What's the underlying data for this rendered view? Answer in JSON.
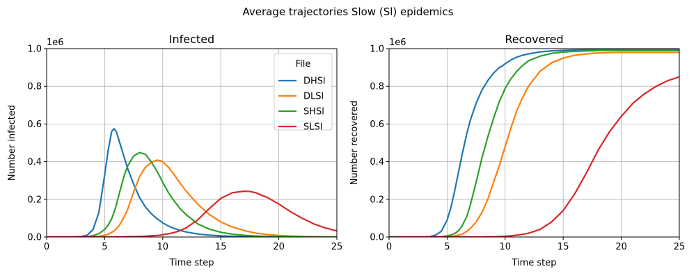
{
  "figure": {
    "suptitle": "Average trajectories Slow (Sl) epidemics"
  },
  "colors": {
    "DHSl": "#1f77b4",
    "DLSl": "#ff7f0e",
    "SHSl": "#2ca02c",
    "SLSl": "#d62728",
    "grid": "#b0b0b0"
  },
  "chart_data": [
    {
      "type": "line",
      "title": "Infected",
      "xlabel": "Time step",
      "ylabel": "Number infected",
      "offset_text": "1e6",
      "xlim": [
        0,
        25
      ],
      "ylim": [
        0,
        1.0
      ],
      "xticks": [
        "0",
        "5",
        "10",
        "15",
        "20",
        "25"
      ],
      "yticks": [
        "0.0",
        "0.2",
        "0.4",
        "0.6",
        "0.8",
        "1.0"
      ],
      "grid": true,
      "legend": {
        "title": "File",
        "placement": "top-right",
        "entries": [
          "DHSl",
          "DLSl",
          "SHSl",
          "SLSl"
        ]
      },
      "x": [
        0,
        1,
        2,
        3,
        3.5,
        4,
        4.5,
        5,
        5.3,
        5.6,
        5.8,
        6,
        6.3,
        6.7,
        7,
        7.5,
        8,
        8.5,
        9,
        9.5,
        9.8,
        10,
        10.5,
        11,
        11.5,
        12,
        13,
        14,
        15,
        16,
        17,
        17.5,
        18,
        19,
        20,
        21,
        22,
        23,
        24,
        25
      ],
      "series": [
        {
          "name": "DHSl",
          "values": [
            0,
            0,
            0,
            0.003,
            0.01,
            0.04,
            0.13,
            0.33,
            0.46,
            0.56,
            0.575,
            0.56,
            0.5,
            0.42,
            0.36,
            0.28,
            0.21,
            0.16,
            0.125,
            0.097,
            0.085,
            0.075,
            0.058,
            0.045,
            0.035,
            0.027,
            0.016,
            0.01,
            0.006,
            0.004,
            0.002,
            0.002,
            0.001,
            0.001,
            0,
            0,
            0,
            0,
            0,
            0
          ]
        },
        {
          "name": "DLSl",
          "values": [
            0,
            0,
            0,
            0,
            0.001,
            0.002,
            0.004,
            0.009,
            0.015,
            0.024,
            0.032,
            0.043,
            0.065,
            0.11,
            0.15,
            0.24,
            0.32,
            0.37,
            0.395,
            0.408,
            0.405,
            0.4,
            0.37,
            0.33,
            0.285,
            0.245,
            0.175,
            0.12,
            0.08,
            0.053,
            0.035,
            0.027,
            0.021,
            0.013,
            0.008,
            0.005,
            0.003,
            0.002,
            0.001,
            0
          ]
        },
        {
          "name": "SHSl",
          "values": [
            0,
            0,
            0,
            0.001,
            0.002,
            0.007,
            0.018,
            0.04,
            0.063,
            0.097,
            0.13,
            0.17,
            0.24,
            0.33,
            0.38,
            0.43,
            0.448,
            0.44,
            0.4,
            0.35,
            0.315,
            0.29,
            0.235,
            0.19,
            0.15,
            0.12,
            0.07,
            0.042,
            0.025,
            0.015,
            0.009,
            0.007,
            0.005,
            0.003,
            0.002,
            0.001,
            0,
            0,
            0,
            0
          ]
        },
        {
          "name": "SLSl",
          "values": [
            0,
            0,
            0,
            0,
            0,
            0,
            0,
            0,
            0,
            0,
            0,
            0.001,
            0.001,
            0.001,
            0.002,
            0.002,
            0.003,
            0.004,
            0.006,
            0.008,
            0.01,
            0.012,
            0.017,
            0.024,
            0.034,
            0.048,
            0.09,
            0.15,
            0.205,
            0.235,
            0.243,
            0.242,
            0.235,
            0.21,
            0.175,
            0.135,
            0.1,
            0.07,
            0.048,
            0.032
          ]
        }
      ]
    },
    {
      "type": "line",
      "title": "Recovered",
      "xlabel": "Time step",
      "ylabel": "Number recovered",
      "offset_text": "1e6",
      "xlim": [
        0,
        25
      ],
      "ylim": [
        0,
        1.0
      ],
      "xticks": [
        "0",
        "5",
        "10",
        "15",
        "20",
        "25"
      ],
      "yticks": [
        "0.0",
        "0.2",
        "0.4",
        "0.6",
        "0.8",
        "1.0"
      ],
      "grid": true,
      "x": [
        0,
        1,
        2,
        3,
        3.5,
        4,
        4.5,
        5,
        5.3,
        5.6,
        5.8,
        6,
        6.3,
        6.7,
        7,
        7.5,
        8,
        8.5,
        9,
        9.5,
        9.8,
        10,
        10.5,
        11,
        11.5,
        12,
        13,
        14,
        15,
        16,
        17,
        17.5,
        18,
        19,
        20,
        21,
        22,
        23,
        24,
        25
      ],
      "series": [
        {
          "name": "DHSl",
          "values": [
            0,
            0,
            0,
            0,
            0.002,
            0.01,
            0.03,
            0.09,
            0.15,
            0.23,
            0.29,
            0.35,
            0.44,
            0.55,
            0.62,
            0.71,
            0.78,
            0.83,
            0.87,
            0.9,
            0.91,
            0.92,
            0.94,
            0.955,
            0.965,
            0.972,
            0.983,
            0.988,
            0.991,
            0.993,
            0.994,
            0.994,
            0.995,
            0.995,
            0.995,
            0.995,
            0.995,
            0.995,
            0.995,
            0.995
          ]
        },
        {
          "name": "DLSl",
          "values": [
            0,
            0,
            0,
            0,
            0,
            0,
            0,
            0.002,
            0.003,
            0.005,
            0.007,
            0.01,
            0.016,
            0.03,
            0.045,
            0.08,
            0.13,
            0.2,
            0.29,
            0.38,
            0.44,
            0.48,
            0.58,
            0.67,
            0.74,
            0.8,
            0.88,
            0.925,
            0.95,
            0.965,
            0.972,
            0.975,
            0.977,
            0.979,
            0.98,
            0.98,
            0.98,
            0.98,
            0.98,
            0.98
          ]
        },
        {
          "name": "SHSl",
          "values": [
            0,
            0,
            0,
            0,
            0,
            0.001,
            0.002,
            0.006,
            0.01,
            0.017,
            0.024,
            0.035,
            0.06,
            0.11,
            0.17,
            0.29,
            0.42,
            0.53,
            0.63,
            0.72,
            0.76,
            0.79,
            0.84,
            0.88,
            0.91,
            0.935,
            0.96,
            0.975,
            0.982,
            0.986,
            0.988,
            0.989,
            0.99,
            0.99,
            0.99,
            0.99,
            0.99,
            0.99,
            0.99,
            0.99
          ]
        },
        {
          "name": "SLSl",
          "values": [
            0,
            0,
            0,
            0,
            0,
            0,
            0,
            0,
            0,
            0,
            0,
            0,
            0,
            0,
            0,
            0,
            0,
            0.001,
            0.001,
            0.002,
            0.003,
            0.004,
            0.006,
            0.01,
            0.014,
            0.02,
            0.04,
            0.08,
            0.14,
            0.23,
            0.34,
            0.4,
            0.46,
            0.56,
            0.64,
            0.71,
            0.76,
            0.8,
            0.83,
            0.85
          ]
        }
      ]
    }
  ]
}
